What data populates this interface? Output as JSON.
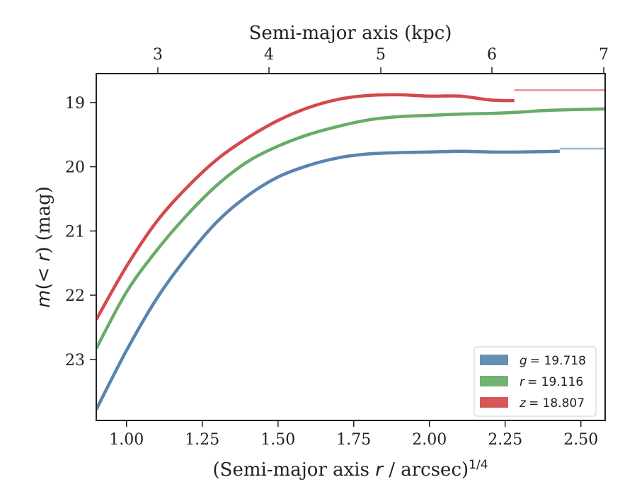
{
  "chart_data": {
    "type": "line",
    "top_axis": {
      "label": "Semi-major axis (kpc)",
      "ticks": [
        3,
        4,
        5,
        6,
        7
      ],
      "tick_labels": [
        "3",
        "4",
        "5",
        "6",
        "7"
      ]
    },
    "x_axis": {
      "label_prefix": "(Semi-major axis ",
      "label_var": "r",
      "label_mid": " / arcsec)",
      "label_sup": "1/4",
      "ticks": [
        1.0,
        1.25,
        1.5,
        1.75,
        2.0,
        2.25,
        2.5
      ],
      "tick_labels": [
        "1.00",
        "1.25",
        "1.50",
        "1.75",
        "2.00",
        "2.25",
        "2.50"
      ],
      "range": [
        0.9,
        2.58
      ]
    },
    "y_axis": {
      "label_var": "m",
      "label_mid": "(< ",
      "label_var2": "r",
      "label_end": ") (mag)",
      "ticks": [
        19,
        20,
        21,
        22,
        23
      ],
      "tick_labels": [
        "19",
        "20",
        "21",
        "22",
        "23"
      ],
      "range": [
        18.55,
        23.95
      ],
      "inverted": true
    },
    "legend": {
      "placement": "lower-right"
    },
    "series": [
      {
        "name": "g = 19.718",
        "legend_var": "g",
        "legend_value": "= 19.718",
        "color": "#4a7ba8",
        "asymptote": 19.718,
        "x": [
          0.9,
          1.0,
          1.1,
          1.2,
          1.3,
          1.4,
          1.5,
          1.6,
          1.7,
          1.8,
          1.9,
          2.0,
          2.1,
          2.2,
          2.3,
          2.43
        ],
        "y": [
          23.78,
          22.86,
          22.05,
          21.4,
          20.85,
          20.45,
          20.16,
          19.98,
          19.86,
          19.8,
          19.78,
          19.77,
          19.76,
          19.77,
          19.77,
          19.76
        ]
      },
      {
        "name": "r = 19.116",
        "legend_var": "r",
        "legend_value": "= 19.116",
        "color": "#5ba55b",
        "asymptote": 19.116,
        "x": [
          0.9,
          1.0,
          1.1,
          1.2,
          1.3,
          1.4,
          1.5,
          1.6,
          1.7,
          1.8,
          1.9,
          2.0,
          2.1,
          2.2,
          2.3,
          2.4,
          2.58
        ],
        "y": [
          22.83,
          21.95,
          21.3,
          20.75,
          20.28,
          19.92,
          19.68,
          19.5,
          19.37,
          19.27,
          19.22,
          19.2,
          19.18,
          19.17,
          19.15,
          19.12,
          19.1
        ]
      },
      {
        "name": "z = 18.807",
        "legend_var": "z",
        "legend_value": "= 18.807",
        "color": "#d03a3a",
        "asymptote": 18.807,
        "x": [
          0.9,
          1.0,
          1.1,
          1.2,
          1.3,
          1.4,
          1.5,
          1.6,
          1.7,
          1.8,
          1.9,
          2.0,
          2.1,
          2.2,
          2.28
        ],
        "y": [
          22.38,
          21.55,
          20.85,
          20.32,
          19.88,
          19.55,
          19.28,
          19.08,
          18.95,
          18.89,
          18.88,
          18.9,
          18.9,
          18.96,
          18.97
        ]
      }
    ]
  }
}
